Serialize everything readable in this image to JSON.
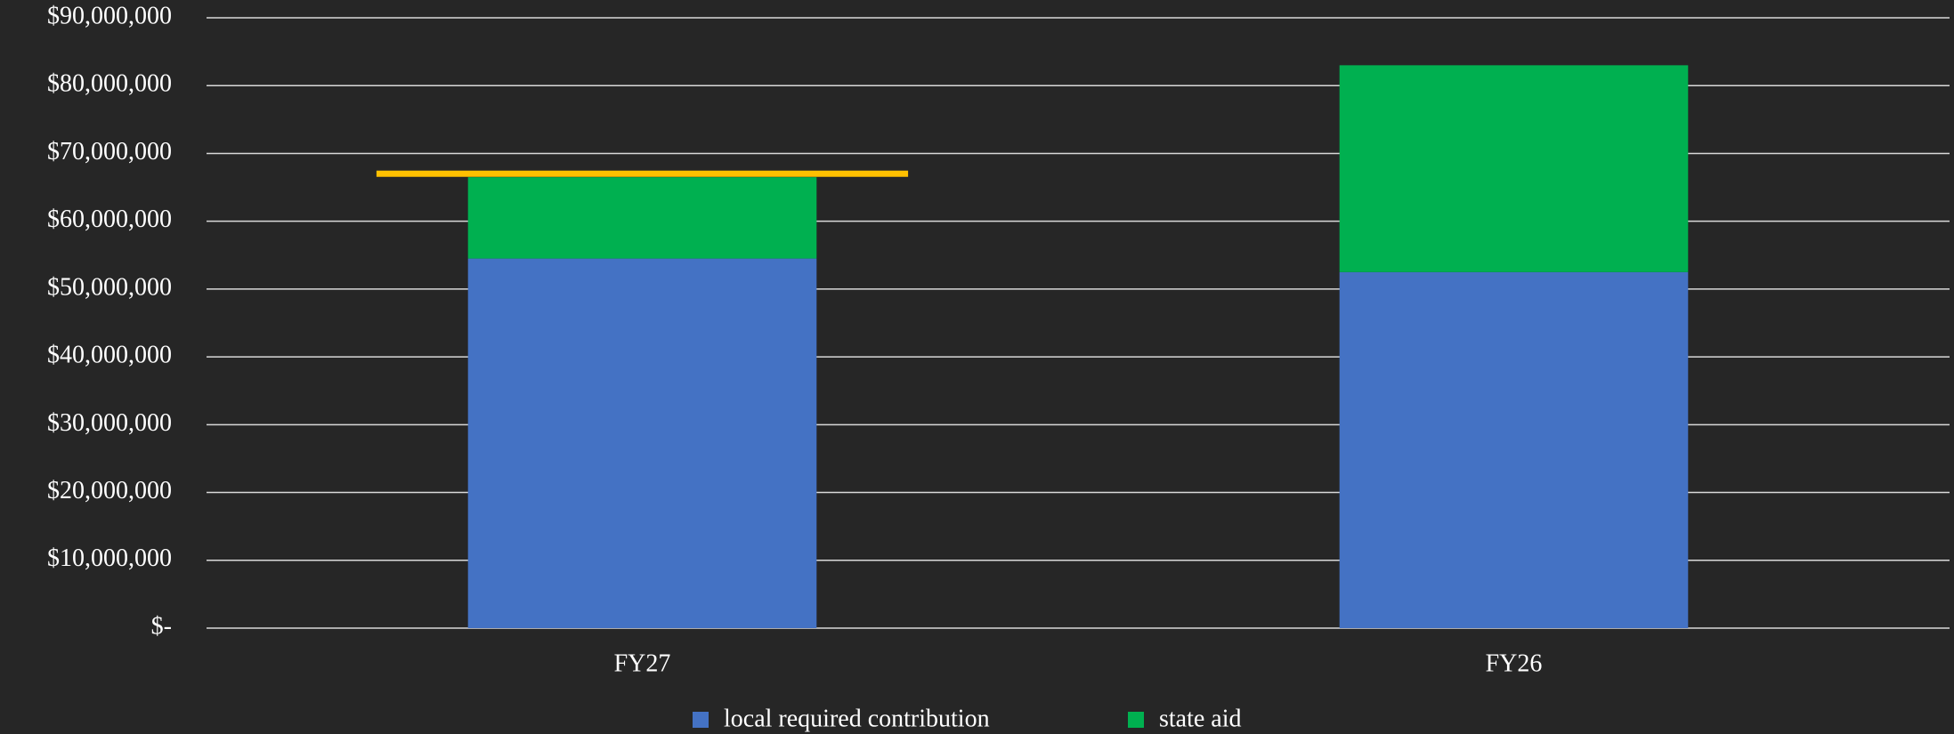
{
  "chart_data": {
    "type": "stacked_bar",
    "categories": [
      "FY27",
      "FY26"
    ],
    "series": [
      {
        "name": "local required contribution",
        "color": "#4472c4",
        "values": [
          54500000,
          52500000
        ]
      },
      {
        "name": "state aid",
        "color": "#00b050",
        "values": [
          12000000,
          30500000
        ]
      }
    ],
    "reference_line": {
      "value": 67000000,
      "color": "#ffc000"
    },
    "ylim": [
      0,
      90000000
    ],
    "yticks": [
      {
        "value": 0,
        "label": "$-"
      },
      {
        "value": 10000000,
        "label": "$10,000,000"
      },
      {
        "value": 20000000,
        "label": "$20,000,000"
      },
      {
        "value": 30000000,
        "label": "$30,000,000"
      },
      {
        "value": 40000000,
        "label": "$40,000,000"
      },
      {
        "value": 50000000,
        "label": "$50,000,000"
      },
      {
        "value": 60000000,
        "label": "$60,000,000"
      },
      {
        "value": 70000000,
        "label": "$70,000,000"
      },
      {
        "value": 80000000,
        "label": "$80,000,000"
      },
      {
        "value": 90000000,
        "label": "$90,000,000"
      }
    ],
    "grid": true,
    "legend": "bottom"
  }
}
